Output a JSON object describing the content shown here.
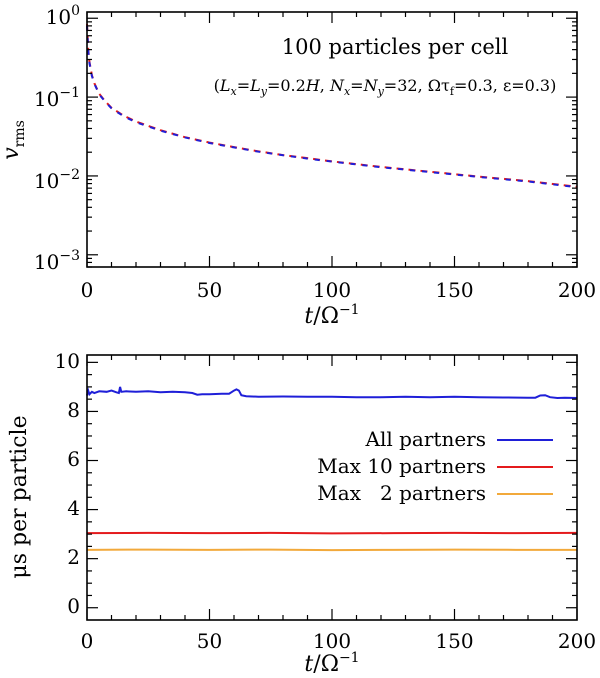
{
  "chart_data": [
    {
      "type": "line",
      "y_scale": "log",
      "xlim": [
        0,
        200
      ],
      "ylim": [
        0.0007,
        1.2
      ],
      "xlabel": {
        "main": "t",
        "sep": "/",
        "omega": "Ω",
        "exp": "−1"
      },
      "ylabel": {
        "main": "v",
        "sub": "rms"
      },
      "x_ticks": [
        {
          "value": 0,
          "label": "0"
        },
        {
          "value": 50,
          "label": "50"
        },
        {
          "value": 100,
          "label": "100"
        },
        {
          "value": 150,
          "label": "150"
        },
        {
          "value": 200,
          "label": "200"
        }
      ],
      "y_ticks": [
        {
          "value": 1,
          "base": "10",
          "exp": "0"
        },
        {
          "value": 0.1,
          "base": "10",
          "exp": "−1"
        },
        {
          "value": 0.01,
          "base": "10",
          "exp": "−2"
        },
        {
          "value": 0.001,
          "base": "10",
          "exp": "−3"
        }
      ],
      "annotation": {
        "title": "100 particles per cell",
        "params": {
          "open": "(",
          "Lx": "L",
          "x1": "x",
          "eq1": "=",
          "Ly": "L",
          "y1": "y",
          "val1": "=0.2",
          "H": "H",
          "comma1": ", ",
          "Nx": "N",
          "x2": "x",
          "eq2": "=",
          "Ny": "N",
          "y2": "y",
          "val2": "=32, ",
          "omega": "Ωτ",
          "f": "f",
          "val3": "=0.3, ",
          "eps": "ε=0.3)"
        }
      },
      "series": [
        {
          "name": "red",
          "color": "#e41a1c",
          "dash": "dashed",
          "points": [
            [
              0,
              0.85
            ],
            [
              0.5,
              0.4
            ],
            [
              1,
              0.28
            ],
            [
              2,
              0.19
            ],
            [
              3,
              0.15
            ],
            [
              5,
              0.11
            ],
            [
              7.5,
              0.088
            ],
            [
              10,
              0.073
            ],
            [
              15,
              0.058
            ],
            [
              20,
              0.049
            ],
            [
              30,
              0.038
            ],
            [
              40,
              0.031
            ],
            [
              50,
              0.0265
            ],
            [
              60,
              0.0232
            ],
            [
              70,
              0.0205
            ],
            [
              80,
              0.0184
            ],
            [
              90,
              0.0168
            ],
            [
              100,
              0.0153
            ],
            [
              120,
              0.013
            ],
            [
              140,
              0.0113
            ],
            [
              160,
              0.0098
            ],
            [
              180,
              0.0086
            ],
            [
              200,
              0.0073
            ]
          ]
        },
        {
          "name": "blue",
          "color": "#1f1fd8",
          "dash": "dashed",
          "points": [
            [
              0,
              0.8
            ],
            [
              0.5,
              0.39
            ],
            [
              1,
              0.27
            ],
            [
              2,
              0.185
            ],
            [
              3,
              0.148
            ],
            [
              5,
              0.108
            ],
            [
              7.5,
              0.087
            ],
            [
              10,
              0.072
            ],
            [
              15,
              0.057
            ],
            [
              20,
              0.048
            ],
            [
              30,
              0.0375
            ],
            [
              40,
              0.0308
            ],
            [
              50,
              0.0262
            ],
            [
              60,
              0.023
            ],
            [
              70,
              0.0203
            ],
            [
              80,
              0.0183
            ],
            [
              90,
              0.0166
            ],
            [
              100,
              0.0152
            ],
            [
              120,
              0.0129
            ],
            [
              140,
              0.0112
            ],
            [
              160,
              0.0097
            ],
            [
              180,
              0.0085
            ],
            [
              200,
              0.0072
            ]
          ]
        }
      ]
    },
    {
      "type": "line",
      "y_scale": "linear",
      "xlim": [
        0,
        200
      ],
      "ylim": [
        -0.5,
        10.3
      ],
      "xlabel": {
        "main": "t",
        "sep": "/",
        "omega": "Ω",
        "exp": "−1"
      },
      "ylabel": "μs per particle",
      "x_ticks": [
        {
          "value": 0,
          "label": "0"
        },
        {
          "value": 50,
          "label": "50"
        },
        {
          "value": 100,
          "label": "100"
        },
        {
          "value": 150,
          "label": "150"
        },
        {
          "value": 200,
          "label": "200"
        }
      ],
      "y_ticks": [
        {
          "value": 0,
          "label": "0"
        },
        {
          "value": 2,
          "label": "2"
        },
        {
          "value": 4,
          "label": "4"
        },
        {
          "value": 6,
          "label": "6"
        },
        {
          "value": 8,
          "label": "8"
        },
        {
          "value": 10,
          "label": "10"
        }
      ],
      "legend_position": "right",
      "series": [
        {
          "name": "All partners",
          "color": "#1f1fd8",
          "points": [
            [
              0,
              8.65
            ],
            [
              0.5,
              8.85
            ],
            [
              1,
              8.7
            ],
            [
              2,
              8.8
            ],
            [
              3,
              8.75
            ],
            [
              5,
              8.82
            ],
            [
              8,
              8.8
            ],
            [
              10,
              8.85
            ],
            [
              12,
              8.78
            ],
            [
              13,
              8.75
            ],
            [
              13.5,
              9.0
            ],
            [
              14,
              8.8
            ],
            [
              16,
              8.82
            ],
            [
              20,
              8.8
            ],
            [
              25,
              8.82
            ],
            [
              30,
              8.78
            ],
            [
              35,
              8.8
            ],
            [
              40,
              8.78
            ],
            [
              43,
              8.75
            ],
            [
              45,
              8.68
            ],
            [
              47,
              8.7
            ],
            [
              50,
              8.7
            ],
            [
              55,
              8.72
            ],
            [
              58,
              8.72
            ],
            [
              60,
              8.85
            ],
            [
              61,
              8.9
            ],
            [
              62,
              8.85
            ],
            [
              63,
              8.66
            ],
            [
              65,
              8.62
            ],
            [
              70,
              8.6
            ],
            [
              80,
              8.61
            ],
            [
              90,
              8.6
            ],
            [
              100,
              8.6
            ],
            [
              110,
              8.58
            ],
            [
              120,
              8.58
            ],
            [
              130,
              8.6
            ],
            [
              140,
              8.58
            ],
            [
              150,
              8.6
            ],
            [
              160,
              8.58
            ],
            [
              170,
              8.57
            ],
            [
              180,
              8.56
            ],
            [
              183,
              8.56
            ],
            [
              185,
              8.65
            ],
            [
              187,
              8.66
            ],
            [
              189,
              8.58
            ],
            [
              192,
              8.55
            ],
            [
              195,
              8.56
            ],
            [
              200,
              8.55
            ]
          ]
        },
        {
          "name": "Max 10 partners",
          "color": "#e41a1c",
          "points": [
            [
              0,
              3.04
            ],
            [
              25,
              3.05
            ],
            [
              50,
              3.04
            ],
            [
              75,
              3.05
            ],
            [
              100,
              3.03
            ],
            [
              125,
              3.04
            ],
            [
              150,
              3.05
            ],
            [
              175,
              3.04
            ],
            [
              200,
              3.05
            ]
          ]
        },
        {
          "name": "Max   2 partners",
          "color": "#f2a93b",
          "points": [
            [
              0,
              2.36
            ],
            [
              25,
              2.37
            ],
            [
              50,
              2.36
            ],
            [
              75,
              2.37
            ],
            [
              100,
              2.35
            ],
            [
              125,
              2.36
            ],
            [
              150,
              2.37
            ],
            [
              175,
              2.36
            ],
            [
              200,
              2.36
            ]
          ]
        }
      ]
    }
  ]
}
